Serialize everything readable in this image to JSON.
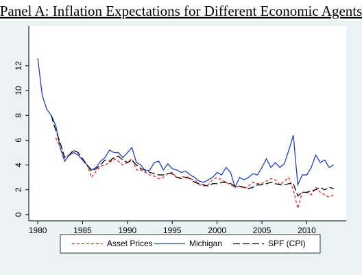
{
  "chart_data": {
    "type": "line",
    "title": "Panel A: Inflation Expectations for Different Economic Agents",
    "x": [
      1980,
      1980.5,
      1981,
      1981.5,
      1982,
      1982.5,
      1983,
      1983.5,
      1984,
      1984.5,
      1985,
      1985.5,
      1986,
      1986.5,
      1987,
      1987.5,
      1988,
      1988.5,
      1989,
      1989.5,
      1990,
      1990.5,
      1991,
      1991.5,
      1992,
      1992.5,
      1993,
      1993.5,
      1994,
      1994.5,
      1995,
      1995.5,
      1996,
      1996.5,
      1997,
      1997.5,
      1998,
      1998.5,
      1999,
      1999.5,
      2000,
      2000.5,
      2001,
      2001.5,
      2002,
      2002.5,
      2003,
      2003.5,
      2004,
      2004.5,
      2005,
      2005.5,
      2006,
      2006.5,
      2007,
      2007.5,
      2008,
      2008.5,
      2009,
      2009.5,
      2010,
      2010.5,
      2011,
      2011.5,
      2012,
      2012.5,
      2013
    ],
    "series": [
      {
        "name": "Asset Prices",
        "color": "#e8281e",
        "dash": "4,3",
        "values": [
          null,
          null,
          null,
          null,
          6.2,
          5.4,
          4.6,
          4.8,
          5.2,
          4.8,
          4.4,
          4.0,
          3.0,
          3.5,
          3.9,
          4.0,
          4.2,
          4.5,
          4.3,
          4.0,
          4.2,
          4.5,
          3.6,
          3.6,
          3.4,
          3.2,
          3.1,
          2.9,
          3.0,
          3.3,
          3.4,
          3.0,
          3.0,
          3.1,
          2.9,
          2.8,
          2.4,
          2.3,
          2.4,
          2.8,
          3.0,
          2.8,
          2.6,
          2.4,
          2.2,
          2.3,
          2.1,
          2.3,
          2.6,
          2.5,
          2.5,
          2.7,
          2.9,
          2.8,
          2.4,
          2.7,
          3.0,
          2.0,
          0.5,
          1.8,
          1.8,
          1.6,
          2.2,
          1.8,
          1.6,
          1.4,
          1.6
        ]
      },
      {
        "name": "Michigan",
        "color": "#1f3fc8",
        "dash": "none",
        "values": [
          12.6,
          9.6,
          8.5,
          8.0,
          7.2,
          5.4,
          4.3,
          4.8,
          5.0,
          4.8,
          4.4,
          4.0,
          3.6,
          3.8,
          4.3,
          4.6,
          5.2,
          5.0,
          5.0,
          4.6,
          5.0,
          5.4,
          4.2,
          4.0,
          3.5,
          3.6,
          4.2,
          4.3,
          3.6,
          4.1,
          3.7,
          3.6,
          3.4,
          3.5,
          3.2,
          3.0,
          2.7,
          2.6,
          2.8,
          3.0,
          3.4,
          3.2,
          3.8,
          3.4,
          2.2,
          3.0,
          2.8,
          3.0,
          3.3,
          3.2,
          3.8,
          4.5,
          3.8,
          4.2,
          3.8,
          4.1,
          5.2,
          6.4,
          2.4,
          3.2,
          3.2,
          3.8,
          4.8,
          4.2,
          4.4,
          3.8,
          4.0
        ]
      },
      {
        "name": "SPF (CPI)",
        "color": "#000000",
        "dash": "10,4",
        "values": [
          null,
          null,
          null,
          8.0,
          6.8,
          5.8,
          4.6,
          4.8,
          5.2,
          5.0,
          4.5,
          4.0,
          3.5,
          3.7,
          4.0,
          4.4,
          4.3,
          4.6,
          4.7,
          4.4,
          4.2,
          4.4,
          4.0,
          3.7,
          3.6,
          3.4,
          3.3,
          3.2,
          3.2,
          3.3,
          3.3,
          3.0,
          2.9,
          3.0,
          2.9,
          2.6,
          2.5,
          2.4,
          2.3,
          2.5,
          2.5,
          2.6,
          2.6,
          2.5,
          2.3,
          2.3,
          2.2,
          2.1,
          2.2,
          2.4,
          2.4,
          2.5,
          2.6,
          2.5,
          2.4,
          2.4,
          2.5,
          2.5,
          1.5,
          1.8,
          1.8,
          1.9,
          2.0,
          2.2,
          2.0,
          2.2,
          2.1
        ]
      }
    ],
    "xlim": [
      1979,
      2014.4
    ],
    "ylim": [
      -0.5,
      15.2
    ],
    "xticks": [
      1980,
      1985,
      1990,
      1995,
      2000,
      2005,
      2010
    ],
    "yticks": [
      0,
      2,
      4,
      6,
      8,
      10,
      12
    ],
    "grid": false
  }
}
